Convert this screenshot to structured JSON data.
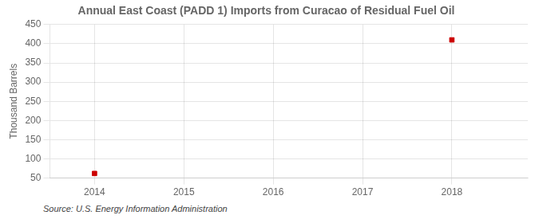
{
  "chart_data": {
    "type": "scatter",
    "title": "Annual East Coast (PADD 1) Imports from Curacao of Residual Fuel Oil",
    "ylabel": "Thousand Barrels",
    "annotation": "Source: U.S. Energy Information Administration",
    "x": [
      2014,
      2018
    ],
    "values": [
      62,
      410
    ],
    "color": "#cc0000",
    "marker": "square",
    "xlim": [
      2013.5,
      2018.85
    ],
    "xticks": [
      2014,
      2015,
      2016,
      2017,
      2018
    ],
    "ylim": [
      50,
      450
    ],
    "yticks": [
      50,
      100,
      150,
      200,
      250,
      300,
      350,
      400,
      450
    ],
    "grid": true
  }
}
